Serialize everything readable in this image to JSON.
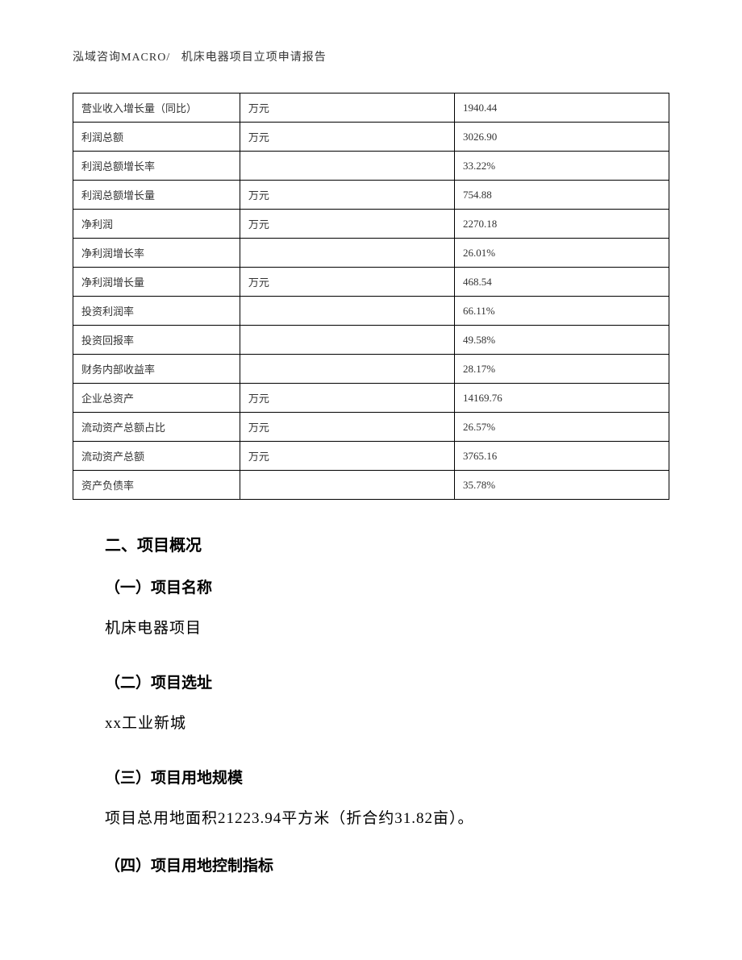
{
  "header": {
    "company": "泓域咨询MACRO/",
    "doc_title": "机床电器项目立项申请报告"
  },
  "table": {
    "rows": [
      {
        "label": "营业收入增长量（同比）",
        "unit": "万元",
        "value": "1940.44"
      },
      {
        "label": "利润总额",
        "unit": "万元",
        "value": "3026.90"
      },
      {
        "label": "利润总额增长率",
        "unit": "",
        "value": "33.22%"
      },
      {
        "label": "利润总额增长量",
        "unit": "万元",
        "value": "754.88"
      },
      {
        "label": "净利润",
        "unit": "万元",
        "value": "2270.18"
      },
      {
        "label": "净利润增长率",
        "unit": "",
        "value": "26.01%"
      },
      {
        "label": "净利润增长量",
        "unit": "万元",
        "value": "468.54"
      },
      {
        "label": "投资利润率",
        "unit": "",
        "value": "66.11%"
      },
      {
        "label": "投资回报率",
        "unit": "",
        "value": "49.58%"
      },
      {
        "label": "财务内部收益率",
        "unit": "",
        "value": "28.17%"
      },
      {
        "label": "企业总资产",
        "unit": "万元",
        "value": "14169.76"
      },
      {
        "label": "流动资产总额占比",
        "unit": "万元",
        "value": "26.57%"
      },
      {
        "label": "流动资产总额",
        "unit": "万元",
        "value": "3765.16"
      },
      {
        "label": "资产负债率",
        "unit": "",
        "value": "35.78%"
      }
    ]
  },
  "sections": {
    "main_title": "二、项目概况",
    "sub1_title": "（一）项目名称",
    "sub1_text": "机床电器项目",
    "sub2_title": "（二）项目选址",
    "sub2_text": "xx工业新城",
    "sub3_title": "（三）项目用地规模",
    "sub3_text": "项目总用地面积21223.94平方米（折合约31.82亩）。",
    "sub4_title": "（四）项目用地控制指标"
  }
}
